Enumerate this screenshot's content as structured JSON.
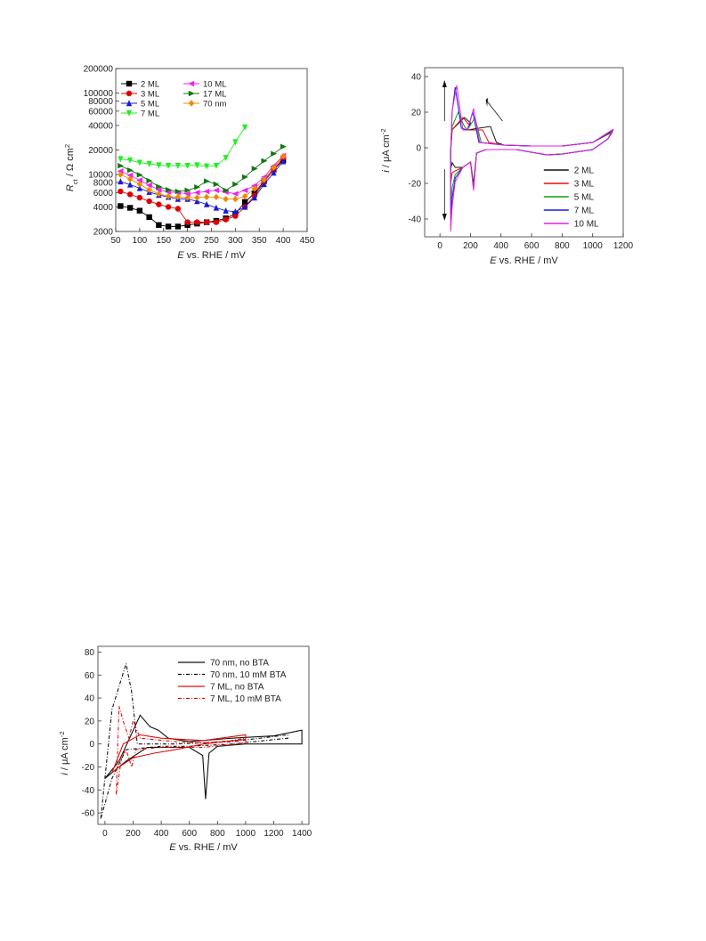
{
  "chart_data": [
    {
      "type": "line",
      "ylabel_parts": [
        "R",
        "ct",
        " / Ω cm",
        "2"
      ],
      "xlabel_parts": [
        "E",
        " vs. RHE / mV"
      ],
      "x_ticks": [
        50,
        100,
        150,
        200,
        250,
        300,
        350,
        400,
        450
      ],
      "y_ticks": [
        2000,
        4000,
        6000,
        8000,
        10000,
        20000,
        40000,
        60000,
        80000,
        100000,
        200000
      ],
      "y_tick_labels": [
        "2000",
        "4000",
        "6000",
        "8000",
        "10000",
        "20000",
        "40000",
        "60000",
        "80000",
        "100000",
        "200000"
      ],
      "xlim": [
        50,
        450
      ],
      "ylim": [
        2000,
        200000
      ],
      "yscale": "log",
      "legend": "top-left",
      "series": [
        {
          "name": "2 ML",
          "color": "#000000",
          "marker": "square",
          "x": [
            60,
            80,
            100,
            120,
            140,
            160,
            180,
            200,
            220,
            240,
            260,
            280,
            300,
            320,
            340,
            360,
            380,
            400
          ],
          "y": [
            4100,
            3900,
            3600,
            3000,
            2400,
            2300,
            2300,
            2400,
            2500,
            2600,
            2700,
            2900,
            3300,
            4600,
            5900,
            8300,
            11500,
            15000
          ]
        },
        {
          "name": "3 ML",
          "color": "#e00000",
          "marker": "circle",
          "x": [
            60,
            80,
            100,
            120,
            140,
            160,
            180,
            200,
            220,
            240,
            260,
            280,
            300,
            320,
            340,
            360,
            380,
            400
          ],
          "y": [
            6200,
            5700,
            5200,
            4700,
            4300,
            4000,
            3800,
            2600,
            2600,
            2600,
            2600,
            2800,
            3100,
            4000,
            5500,
            8100,
            11500,
            16000
          ]
        },
        {
          "name": "5 ML",
          "color": "#1a1ad0",
          "marker": "triangle-up",
          "x": [
            60,
            80,
            100,
            120,
            140,
            160,
            180,
            200,
            220,
            240,
            260,
            280,
            300,
            320,
            340,
            360,
            380,
            400
          ],
          "y": [
            8200,
            7500,
            6800,
            6100,
            5600,
            5300,
            5000,
            5000,
            4700,
            4300,
            3900,
            3600,
            3500,
            4000,
            5200,
            7600,
            10500,
            14500
          ]
        },
        {
          "name": "7 ML",
          "color": "#22ee22",
          "marker": "triangle-down",
          "x": [
            60,
            80,
            100,
            120,
            140,
            160,
            180,
            200,
            220,
            240,
            260,
            280,
            300,
            320
          ],
          "y": [
            15500,
            15000,
            14000,
            13500,
            13000,
            12800,
            12800,
            12800,
            13000,
            12600,
            12800,
            16000,
            25000,
            38000
          ]
        },
        {
          "name": "10 ML",
          "color": "#ee22ee",
          "marker": "triangle-left",
          "x": [
            60,
            80,
            100,
            120,
            140,
            160,
            180,
            200,
            220,
            240,
            260,
            280,
            300,
            320,
            340,
            360,
            380,
            400
          ],
          "y": [
            11000,
            9800,
            8500,
            7400,
            6500,
            6100,
            6000,
            5800,
            6000,
            6200,
            6400,
            6100,
            5800,
            6400,
            7300,
            9300,
            12800,
            17000
          ]
        },
        {
          "name": "17 ML",
          "color": "#117711",
          "marker": "triangle-right",
          "x": [
            60,
            80,
            100,
            120,
            140,
            160,
            180,
            200,
            220,
            240,
            260,
            280,
            300,
            320,
            340,
            360,
            380,
            400
          ],
          "y": [
            12800,
            11300,
            9900,
            8400,
            7100,
            6500,
            6200,
            6400,
            7000,
            8300,
            7600,
            6400,
            7600,
            9300,
            11800,
            14700,
            18000,
            22000
          ]
        },
        {
          "name": "70 nm",
          "color": "#ee8800",
          "marker": "diamond",
          "x": [
            60,
            80,
            100,
            120,
            140,
            160,
            180,
            200,
            220,
            240,
            260,
            280,
            300,
            320,
            340,
            360,
            380,
            400
          ],
          "y": [
            10000,
            8800,
            7600,
            6500,
            5800,
            5400,
            5300,
            5200,
            5200,
            5300,
            5300,
            5000,
            5000,
            5400,
            6700,
            8600,
            12200,
            16800
          ]
        }
      ]
    },
    {
      "type": "line",
      "ylabel_parts": [
        "i",
        " / μA cm",
        "-2"
      ],
      "xlabel_parts": [
        "E",
        " vs. RHE / mV"
      ],
      "x_ticks": [
        0,
        200,
        400,
        600,
        800,
        1000,
        1200
      ],
      "y_ticks": [
        -40,
        -20,
        0,
        20,
        40
      ],
      "xlim": [
        -100,
        1200
      ],
      "ylim": [
        -50,
        45
      ],
      "legend": "bottom-right",
      "series": [
        {
          "name": "2 ML",
          "color": "#111111",
          "x_peak": 330,
          "y_peak": 12,
          "x_pk2": 160,
          "y_pk2": 17,
          "y_min": -12
        },
        {
          "name": "3 ML",
          "color": "#e01010",
          "x_peak": 280,
          "y_peak": 10,
          "x_pk2": 150,
          "y_pk2": 17,
          "y_min": -20
        },
        {
          "name": "5 ML",
          "color": "#10a010",
          "x_peak": 230,
          "y_peak": 17,
          "x_pk2": 120,
          "y_pk2": 20,
          "y_min": -32
        },
        {
          "name": "7 ML",
          "color": "#1a1ae0",
          "x_peak": 215,
          "y_peak": 20,
          "x_pk2": 100,
          "y_pk2": 34,
          "y_min": -40
        },
        {
          "name": "10 ML",
          "color": "#e020e0",
          "x_peak": 220,
          "y_peak": 22,
          "x_pk2": 110,
          "y_pk2": 35,
          "y_min": -47
        }
      ]
    },
    {
      "type": "line",
      "ylabel_parts": [
        "i",
        " / μA cm",
        "-2"
      ],
      "xlabel_parts": [
        "E",
        " vs. RHE / mV"
      ],
      "x_ticks": [
        0,
        200,
        400,
        600,
        800,
        1000,
        1200,
        1400
      ],
      "y_ticks": [
        -60,
        -40,
        -20,
        0,
        20,
        40,
        60,
        80
      ],
      "xlim": [
        -50,
        1450
      ],
      "ylim": [
        -70,
        85
      ],
      "legend": "top-right",
      "series": [
        {
          "name": "70 nm, no BTA",
          "color": "#111111",
          "dash": "solid"
        },
        {
          "name": "70 nm, 10 mM BTA",
          "color": "#111111",
          "dash": "dashdot"
        },
        {
          "name": "7 ML, no BTA",
          "color": "#e01010",
          "dash": "solid"
        },
        {
          "name": "7 ML, 10 mM BTA",
          "color": "#e01010",
          "dash": "dashdot"
        }
      ]
    }
  ]
}
